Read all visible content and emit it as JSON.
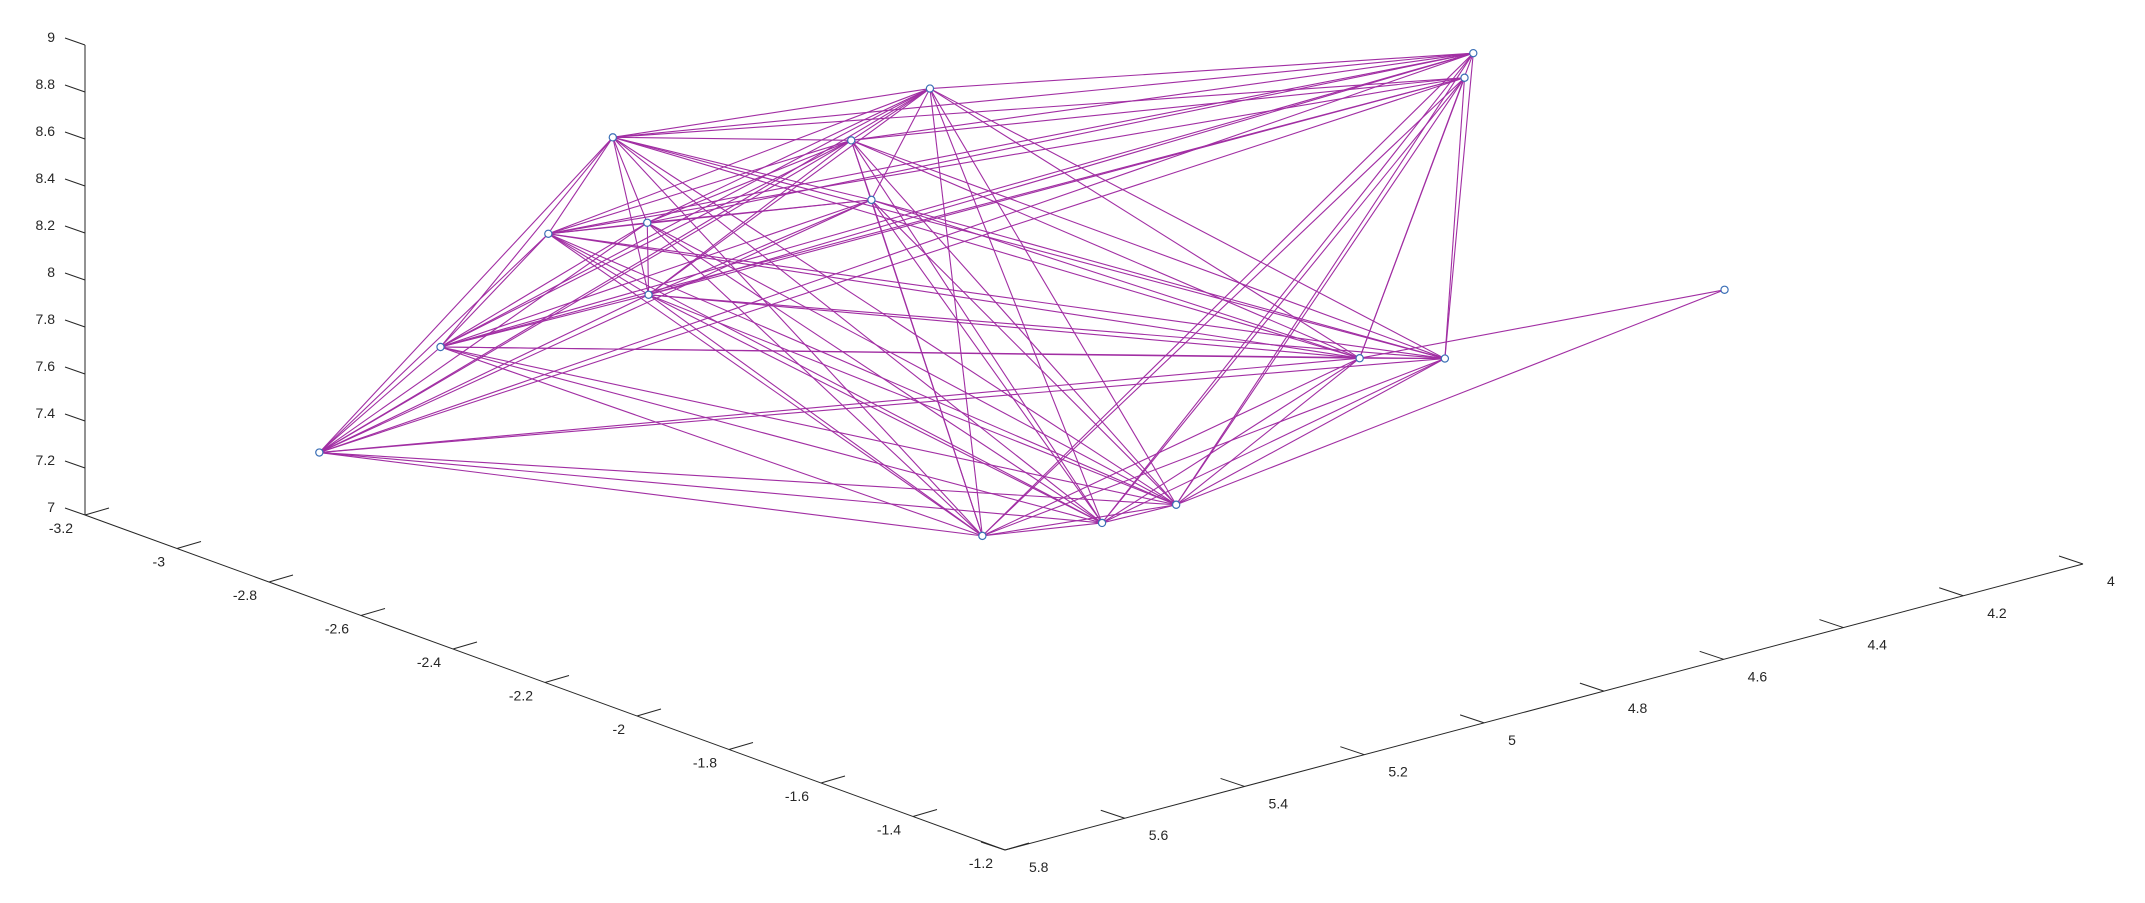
{
  "chart_data": {
    "type": "scatter",
    "subtype": "3d-graph",
    "title": "",
    "xlabel": "",
    "ylabel": "",
    "zlabel": "",
    "grid": false,
    "axes": {
      "x": {
        "lim": [
          -3.2,
          -1.2
        ],
        "ticks": [
          "-3.2",
          "-3",
          "-2.8",
          "-2.6",
          "-2.4",
          "-2.2",
          "-2",
          "-1.8",
          "-1.6",
          "-1.4",
          "-1.2"
        ]
      },
      "y": {
        "lim": [
          5.8,
          4.0
        ],
        "ticks": [
          "5.8",
          "5.6",
          "5.4",
          "5.2",
          "5",
          "4.8",
          "4.6",
          "4.4",
          "4.2",
          "4"
        ]
      },
      "z": {
        "lim": [
          7,
          9
        ],
        "ticks": [
          "7",
          "7.2",
          "7.4",
          "7.6",
          "7.8",
          "8",
          "8.2",
          "8.4",
          "8.6",
          "8.8",
          "9"
        ]
      }
    },
    "colors": {
      "edge": "#a12ea3",
      "node": "#3b6fb6",
      "axis": "#262626"
    },
    "nodes": [
      {
        "id": 1,
        "x": -2.99,
        "y": 5.57,
        "z": 7.26
      },
      {
        "id": 2,
        "x": -3.0,
        "y": 5.36,
        "z": 7.56
      },
      {
        "id": 3,
        "x": -3.0,
        "y": 5.18,
        "z": 7.92
      },
      {
        "id": 4,
        "x": -2.99,
        "y": 5.08,
        "z": 8.27
      },
      {
        "id": 5,
        "x": -2.85,
        "y": 5.13,
        "z": 8.04
      },
      {
        "id": 6,
        "x": -2.73,
        "y": 5.22,
        "z": 7.88
      },
      {
        "id": 7,
        "x": -2.61,
        "y": 4.94,
        "z": 8.18
      },
      {
        "id": 8,
        "x": -2.68,
        "y": 4.92,
        "z": 8.37
      },
      {
        "id": 9,
        "x": -2.6,
        "y": 4.85,
        "z": 8.6
      },
      {
        "id": 10,
        "x": -1.77,
        "y": 5.4,
        "z": 7.66
      },
      {
        "id": 11,
        "x": -1.64,
        "y": 5.3,
        "z": 7.74
      },
      {
        "id": 12,
        "x": -1.57,
        "y": 5.23,
        "z": 7.82
      },
      {
        "id": 13,
        "x": -1.77,
        "y": 4.77,
        "z": 7.99
      },
      {
        "id": 14,
        "x": -1.78,
        "y": 4.62,
        "z": 7.88
      },
      {
        "id": 15,
        "x": -2.2,
        "y": 4.25,
        "z": 8.63
      },
      {
        "id": 16,
        "x": -2.18,
        "y": 4.28,
        "z": 8.56
      },
      {
        "id": 17,
        "x": -1.81,
        "y": 4.13,
        "z": 7.82
      }
    ],
    "edges": [
      [
        1,
        2
      ],
      [
        1,
        3
      ],
      [
        1,
        4
      ],
      [
        1,
        5
      ],
      [
        1,
        6
      ],
      [
        1,
        7
      ],
      [
        1,
        8
      ],
      [
        1,
        9
      ],
      [
        1,
        10
      ],
      [
        1,
        11
      ],
      [
        1,
        12
      ],
      [
        1,
        13
      ],
      [
        1,
        14
      ],
      [
        1,
        15
      ],
      [
        1,
        16
      ],
      [
        2,
        3
      ],
      [
        2,
        4
      ],
      [
        2,
        5
      ],
      [
        2,
        6
      ],
      [
        2,
        7
      ],
      [
        2,
        8
      ],
      [
        2,
        9
      ],
      [
        2,
        10
      ],
      [
        2,
        11
      ],
      [
        2,
        12
      ],
      [
        2,
        13
      ],
      [
        2,
        14
      ],
      [
        2,
        15
      ],
      [
        2,
        16
      ],
      [
        3,
        4
      ],
      [
        3,
        5
      ],
      [
        3,
        6
      ],
      [
        3,
        7
      ],
      [
        3,
        8
      ],
      [
        3,
        9
      ],
      [
        3,
        10
      ],
      [
        3,
        11
      ],
      [
        3,
        12
      ],
      [
        3,
        13
      ],
      [
        3,
        14
      ],
      [
        3,
        15
      ],
      [
        3,
        16
      ],
      [
        4,
        5
      ],
      [
        4,
        6
      ],
      [
        4,
        7
      ],
      [
        4,
        8
      ],
      [
        4,
        9
      ],
      [
        4,
        10
      ],
      [
        4,
        11
      ],
      [
        4,
        12
      ],
      [
        4,
        13
      ],
      [
        4,
        14
      ],
      [
        4,
        15
      ],
      [
        4,
        16
      ],
      [
        5,
        6
      ],
      [
        5,
        7
      ],
      [
        5,
        8
      ],
      [
        5,
        9
      ],
      [
        5,
        10
      ],
      [
        5,
        11
      ],
      [
        5,
        12
      ],
      [
        5,
        15
      ],
      [
        6,
        7
      ],
      [
        6,
        8
      ],
      [
        6,
        9
      ],
      [
        6,
        10
      ],
      [
        6,
        11
      ],
      [
        6,
        12
      ],
      [
        6,
        13
      ],
      [
        6,
        14
      ],
      [
        6,
        15
      ],
      [
        6,
        16
      ],
      [
        7,
        8
      ],
      [
        7,
        9
      ],
      [
        7,
        10
      ],
      [
        7,
        11
      ],
      [
        7,
        12
      ],
      [
        7,
        13
      ],
      [
        7,
        14
      ],
      [
        8,
        9
      ],
      [
        8,
        10
      ],
      [
        8,
        11
      ],
      [
        8,
        12
      ],
      [
        8,
        13
      ],
      [
        8,
        14
      ],
      [
        8,
        15
      ],
      [
        8,
        16
      ],
      [
        9,
        10
      ],
      [
        9,
        11
      ],
      [
        9,
        12
      ],
      [
        9,
        13
      ],
      [
        9,
        14
      ],
      [
        9,
        15
      ],
      [
        10,
        11
      ],
      [
        10,
        12
      ],
      [
        10,
        13
      ],
      [
        10,
        14
      ],
      [
        10,
        15
      ],
      [
        10,
        16
      ],
      [
        11,
        12
      ],
      [
        11,
        13
      ],
      [
        11,
        14
      ],
      [
        11,
        15
      ],
      [
        11,
        16
      ],
      [
        12,
        13
      ],
      [
        12,
        14
      ],
      [
        12,
        15
      ],
      [
        12,
        16
      ],
      [
        12,
        17
      ],
      [
        13,
        14
      ],
      [
        13,
        15
      ],
      [
        13,
        16
      ],
      [
        13,
        17
      ],
      [
        14,
        15
      ],
      [
        14,
        16
      ]
    ]
  }
}
